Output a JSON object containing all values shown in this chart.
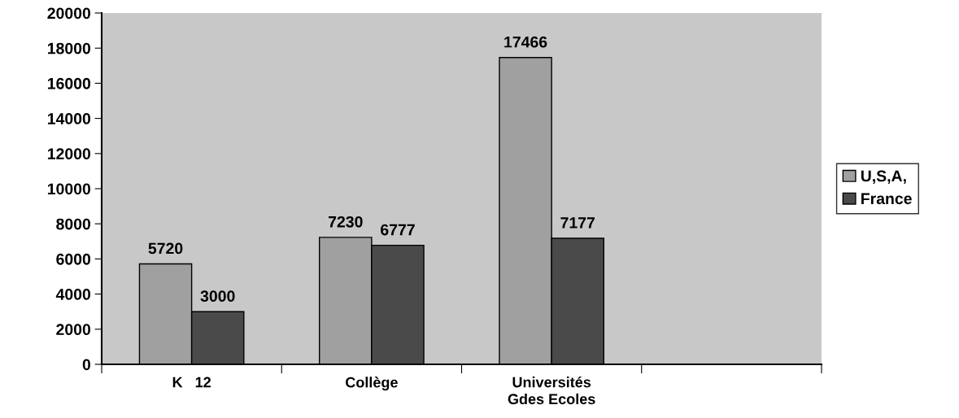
{
  "chart_data": {
    "type": "bar",
    "categories": [
      "K   12",
      "Collège",
      "Universités\nGdes Ecoles",
      null
    ],
    "series": [
      {
        "name": "U,S,A,",
        "color": "#a0a0a0",
        "values": [
          5720,
          7230,
          17466,
          null
        ]
      },
      {
        "name": "France",
        "color": "#4a4a4a",
        "values": [
          3000,
          6777,
          7177,
          null
        ]
      }
    ],
    "ylim": [
      0,
      20000
    ],
    "yticks": [
      0,
      2000,
      4000,
      6000,
      8000,
      10000,
      12000,
      14000,
      16000,
      18000,
      20000
    ],
    "data_labels": true,
    "legend": "right",
    "grid": false
  }
}
